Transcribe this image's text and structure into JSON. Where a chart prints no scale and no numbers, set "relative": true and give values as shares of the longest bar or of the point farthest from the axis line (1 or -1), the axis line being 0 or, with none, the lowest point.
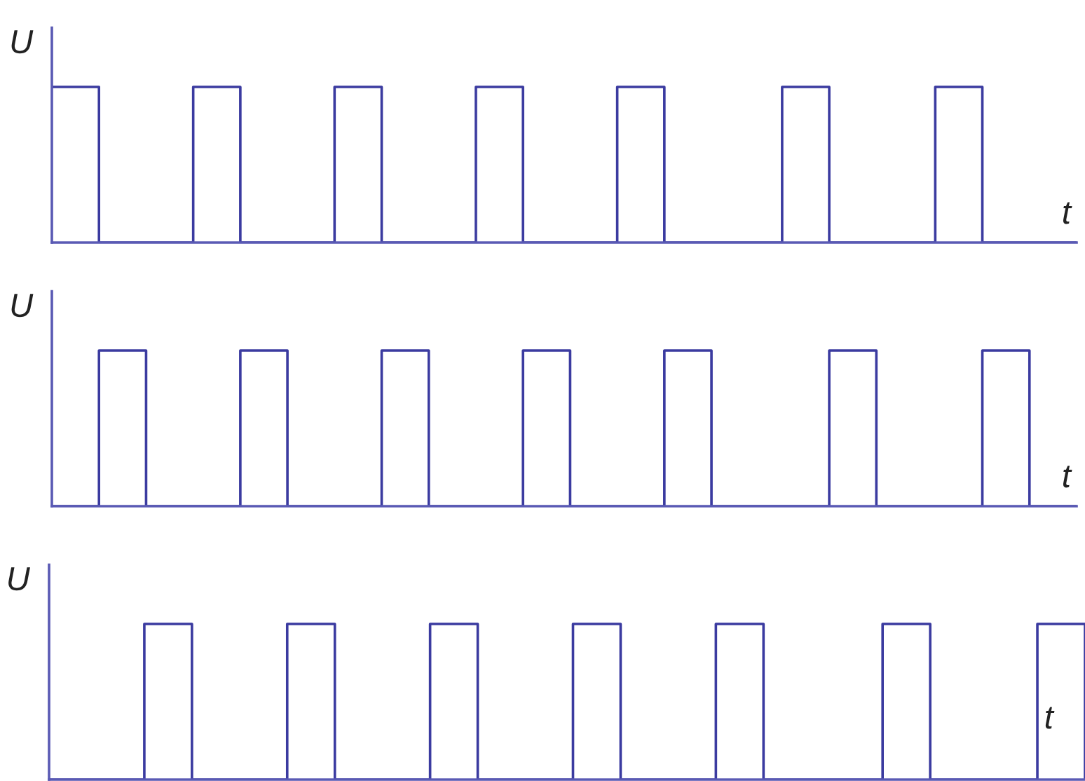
{
  "chart_data": [
    {
      "type": "step",
      "relative": true,
      "ylabel": "U",
      "xlabel": "t",
      "tick_labels": false,
      "categories": [
        null,
        null,
        null,
        null,
        null,
        null,
        null,
        null,
        null,
        null,
        null,
        null,
        null,
        null,
        null,
        null,
        null,
        null,
        null,
        null,
        null,
        null,
        null,
        null,
        null,
        null,
        null,
        null,
        null,
        null,
        null,
        null,
        null,
        null,
        null,
        null,
        null,
        null,
        null,
        null,
        null,
        null,
        null,
        null,
        null,
        null,
        null,
        null,
        null,
        null,
        null,
        null,
        null,
        null,
        null,
        null,
        null,
        null,
        null,
        null,
        null,
        null,
        null,
        null,
        null,
        null,
        null,
        null,
        null,
        null,
        null,
        null,
        null,
        null,
        null,
        null,
        null,
        null,
        null,
        null,
        null,
        null,
        null,
        null,
        null,
        null,
        null,
        null
      ],
      "series": [
        {
          "color": "#3b3ba0",
          "values": [
            1,
            1,
            1,
            1,
            0,
            0,
            0,
            0,
            0,
            0,
            0,
            0,
            1,
            1,
            1,
            1,
            0,
            0,
            0,
            0,
            0,
            0,
            0,
            0,
            1,
            1,
            1,
            1,
            0,
            0,
            0,
            0,
            0,
            0,
            0,
            0,
            1,
            1,
            1,
            1,
            0,
            0,
            0,
            0,
            0,
            0,
            0,
            0,
            1,
            1,
            1,
            1,
            0,
            0,
            0,
            0,
            0,
            0,
            0,
            0,
            0,
            0,
            1,
            1,
            1,
            1,
            0,
            0,
            0,
            0,
            0,
            0,
            0,
            0,
            0,
            1,
            1,
            1,
            1,
            0,
            0,
            0,
            0,
            0,
            0,
            0,
            0,
            0
          ]
        }
      ]
    },
    {
      "type": "step",
      "relative": true,
      "ylabel": "U",
      "xlabel": "t",
      "tick_labels": false,
      "categories": [
        null,
        null,
        null,
        null,
        null,
        null,
        null,
        null,
        null,
        null,
        null,
        null,
        null,
        null,
        null,
        null,
        null,
        null,
        null,
        null,
        null,
        null,
        null,
        null,
        null,
        null,
        null,
        null,
        null,
        null,
        null,
        null,
        null,
        null,
        null,
        null,
        null,
        null,
        null,
        null,
        null,
        null,
        null,
        null,
        null,
        null,
        null,
        null,
        null,
        null,
        null,
        null,
        null,
        null,
        null,
        null,
        null,
        null,
        null,
        null,
        null,
        null,
        null,
        null,
        null,
        null,
        null,
        null,
        null,
        null,
        null,
        null,
        null,
        null,
        null,
        null,
        null,
        null,
        null,
        null,
        null,
        null,
        null,
        null,
        null,
        null,
        null,
        null
      ],
      "series": [
        {
          "color": "#3b3ba0",
          "values": [
            0,
            0,
            0,
            0,
            1,
            1,
            1,
            1,
            0,
            0,
            0,
            0,
            0,
            0,
            0,
            0,
            1,
            1,
            1,
            1,
            0,
            0,
            0,
            0,
            0,
            0,
            0,
            0,
            1,
            1,
            1,
            1,
            0,
            0,
            0,
            0,
            0,
            0,
            0,
            0,
            1,
            1,
            1,
            1,
            0,
            0,
            0,
            0,
            0,
            0,
            0,
            0,
            1,
            1,
            1,
            1,
            0,
            0,
            0,
            0,
            0,
            0,
            0,
            0,
            0,
            0,
            1,
            1,
            1,
            1,
            0,
            0,
            0,
            0,
            0,
            0,
            0,
            0,
            0,
            1,
            1,
            1,
            1,
            0,
            0,
            0,
            0,
            0
          ]
        }
      ]
    },
    {
      "type": "step",
      "relative": true,
      "ylabel": "U",
      "xlabel": "t",
      "tick_labels": false,
      "categories": [
        null,
        null,
        null,
        null,
        null,
        null,
        null,
        null,
        null,
        null,
        null,
        null,
        null,
        null,
        null,
        null,
        null,
        null,
        null,
        null,
        null,
        null,
        null,
        null,
        null,
        null,
        null,
        null,
        null,
        null,
        null,
        null,
        null,
        null,
        null,
        null,
        null,
        null,
        null,
        null,
        null,
        null,
        null,
        null,
        null,
        null,
        null,
        null,
        null,
        null,
        null,
        null,
        null,
        null,
        null,
        null,
        null,
        null,
        null,
        null,
        null,
        null,
        null,
        null,
        null,
        null,
        null,
        null,
        null,
        null,
        null,
        null,
        null,
        null,
        null,
        null,
        null,
        null,
        null,
        null,
        null,
        null,
        null,
        null,
        null,
        null,
        null,
        null
      ],
      "series": [
        {
          "color": "#3b3ba0",
          "values": [
            0,
            0,
            0,
            0,
            0,
            0,
            0,
            0,
            1,
            1,
            1,
            1,
            0,
            0,
            0,
            0,
            0,
            0,
            0,
            0,
            1,
            1,
            1,
            1,
            0,
            0,
            0,
            0,
            0,
            0,
            0,
            0,
            1,
            1,
            1,
            1,
            0,
            0,
            0,
            0,
            0,
            0,
            0,
            0,
            1,
            1,
            1,
            1,
            0,
            0,
            0,
            0,
            0,
            0,
            0,
            0,
            1,
            1,
            1,
            1,
            0,
            0,
            0,
            0,
            0,
            0,
            0,
            0,
            0,
            0,
            1,
            1,
            1,
            1,
            0,
            0,
            0,
            0,
            0,
            0,
            0,
            0,
            0,
            1,
            1,
            1,
            1,
            0
          ]
        }
      ]
    }
  ]
}
